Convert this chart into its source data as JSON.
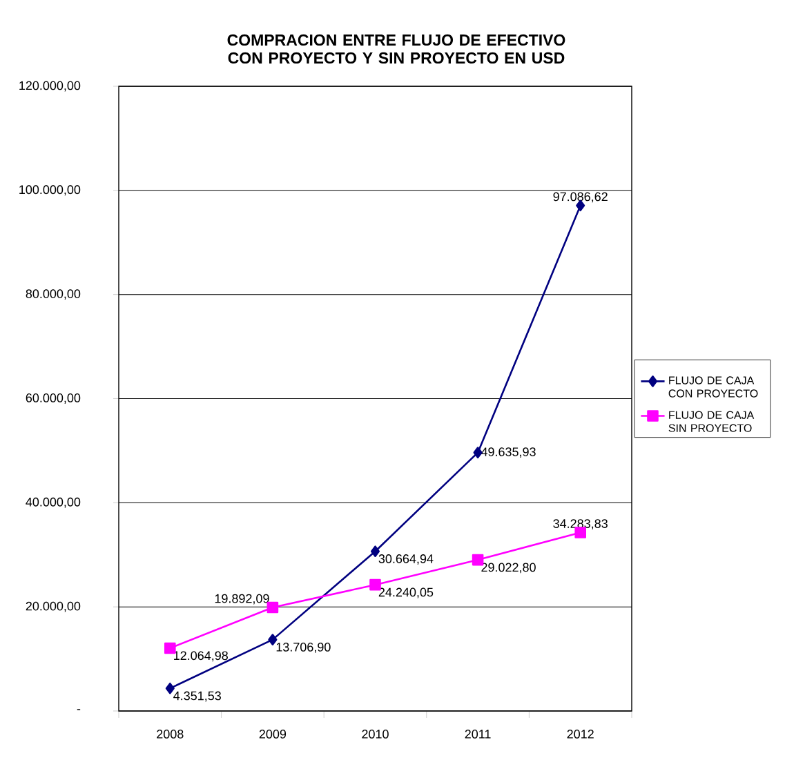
{
  "chart_data": {
    "type": "line",
    "title": "COMPRACION ENTRE FLUJO DE EFECTIVO CON PROYECTO Y SIN PROYECTO EN USD",
    "categories": [
      "2008",
      "2009",
      "2010",
      "2011",
      "2012"
    ],
    "series": [
      {
        "name": "FLUJO DE CAJA CON PROYECTO",
        "color": "#000080",
        "marker": "diamond",
        "values": [
          4351.53,
          13706.9,
          30664.94,
          49635.93,
          97086.62
        ],
        "value_labels": [
          "4.351,53",
          "13.706,90",
          "30.664,94",
          "49.635,93",
          "97.086,62"
        ]
      },
      {
        "name": "FLUJO DE CAJA SIN PROYECTO",
        "color": "#ff00ff",
        "marker": "square",
        "values": [
          12064.98,
          19892.09,
          24240.05,
          29022.8,
          34283.83
        ],
        "value_labels": [
          "12.064,98",
          "19.892,09",
          "24.240,05",
          "29.022,80",
          "34.283,83"
        ]
      }
    ],
    "ylim": [
      0,
      120000
    ],
    "yticks": [
      {
        "value": 0,
        "label": "-"
      },
      {
        "value": 20000,
        "label": "20.000,00"
      },
      {
        "value": 40000,
        "label": "40.000,00"
      },
      {
        "value": 60000,
        "label": "60.000,00"
      },
      {
        "value": 80000,
        "label": "80.000,00"
      },
      {
        "value": 100000,
        "label": "100.000,00"
      },
      {
        "value": 120000,
        "label": "120.000,00"
      }
    ],
    "grid": "y",
    "legend": "right",
    "line_style": "solid"
  }
}
